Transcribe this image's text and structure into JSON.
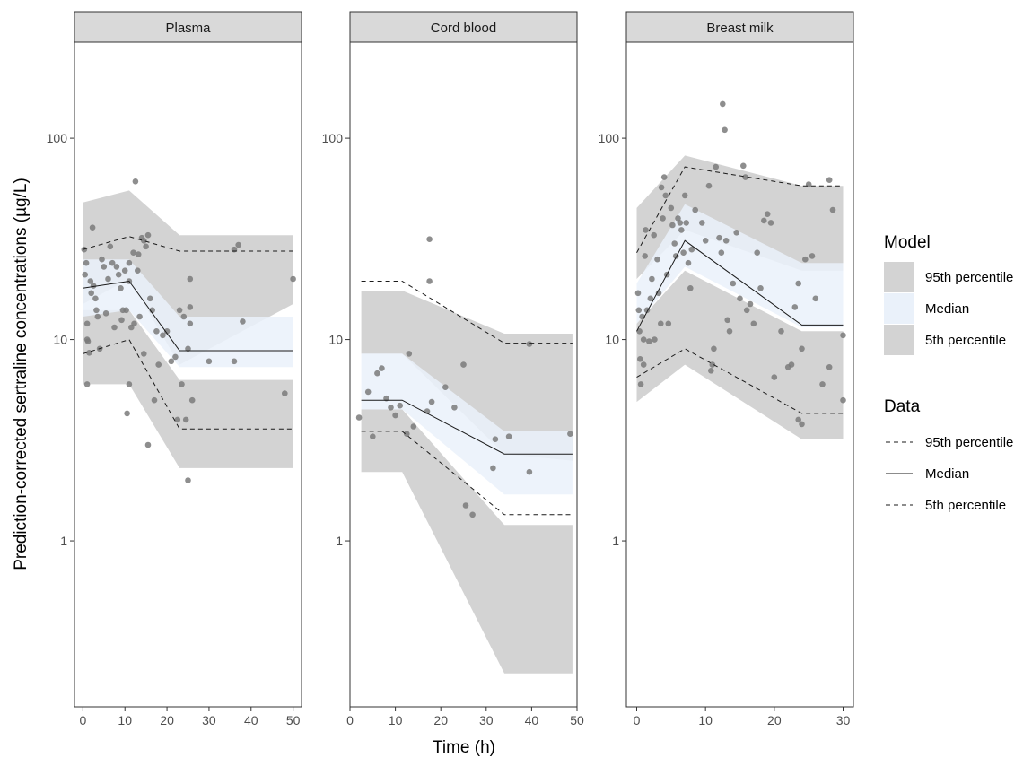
{
  "chart_data": {
    "type": "scatter",
    "ylabel": "Prediction-corrected sertraline concentrations (µg/L)",
    "xlabel": "Time (h)",
    "y_scale": "log10",
    "ylim": [
      0.15,
      300
    ],
    "y_ticks": [
      1,
      10,
      100
    ],
    "y_tick_labels": [
      "1",
      "10",
      "100"
    ],
    "colors": {
      "band_95": "#d3d3d3",
      "band_median": "#eaf1fa",
      "points": "#7a7a7a",
      "line": "#1a1a1a",
      "strip": "#d9d9d9"
    },
    "panels": [
      {
        "title": "Plasma",
        "xlim": [
          -2,
          52
        ],
        "x_ticks": [
          0,
          10,
          20,
          30,
          40,
          50
        ],
        "x_tick_labels": [
          "0",
          "10",
          "20",
          "30",
          "40",
          "50"
        ],
        "bands": {
          "p95": {
            "x": [
              0,
              11,
              23,
              50
            ],
            "lo": [
              15,
              20,
              7.5,
              15
            ],
            "hi": [
              48,
              55,
              33,
              33
            ]
          },
          "median": {
            "x": [
              0,
              11,
              23,
              50
            ],
            "lo": [
              13,
              14,
              7.3,
              7.3
            ],
            "hi": [
              25,
              25,
              13,
              13
            ]
          },
          "p5": {
            "x": [
              0,
              11,
              23,
              50
            ],
            "lo": [
              6,
              6,
              2.3,
              2.3
            ],
            "hi": [
              14,
              14,
              6.3,
              6.3
            ]
          }
        },
        "lines": {
          "p95": {
            "x": [
              0,
              11,
              23,
              50
            ],
            "y": [
              28,
              32.5,
              27.5,
              27.5
            ]
          },
          "median": {
            "x": [
              0,
              11,
              23,
              50
            ],
            "y": [
              18,
              19.5,
              8.8,
              8.8
            ]
          },
          "p5": {
            "x": [
              0,
              11,
              23,
              50
            ],
            "y": [
              8.5,
              10,
              3.6,
              3.6
            ]
          }
        },
        "points": [
          [
            0.3,
            28
          ],
          [
            0.5,
            21
          ],
          [
            0.8,
            24
          ],
          [
            1,
            12
          ],
          [
            1,
            10
          ],
          [
            1.2,
            9.8
          ],
          [
            1.5,
            8.6
          ],
          [
            1,
            6
          ],
          [
            1.8,
            19.5
          ],
          [
            2,
            17
          ],
          [
            2.3,
            36
          ],
          [
            2.5,
            18.5
          ],
          [
            3,
            16
          ],
          [
            3.2,
            14
          ],
          [
            3.5,
            13
          ],
          [
            4,
            9
          ],
          [
            4.5,
            25
          ],
          [
            5,
            23
          ],
          [
            5.5,
            13.5
          ],
          [
            6,
            20
          ],
          [
            6.5,
            29
          ],
          [
            7,
            24
          ],
          [
            7.5,
            11.5
          ],
          [
            8,
            23
          ],
          [
            8.5,
            21
          ],
          [
            9,
            18
          ],
          [
            9.2,
            12.5
          ],
          [
            9.5,
            14
          ],
          [
            10,
            22
          ],
          [
            10.3,
            14
          ],
          [
            10.5,
            4.3
          ],
          [
            11,
            24
          ],
          [
            11,
            19.5
          ],
          [
            11.5,
            11.5
          ],
          [
            11,
            6
          ],
          [
            12,
            27
          ],
          [
            12.2,
            12
          ],
          [
            12.5,
            61
          ],
          [
            13,
            22
          ],
          [
            13.2,
            26.5
          ],
          [
            13.5,
            13
          ],
          [
            14,
            32
          ],
          [
            14.5,
            31
          ],
          [
            14.5,
            8.5
          ],
          [
            15,
            29
          ],
          [
            15.5,
            33
          ],
          [
            15.5,
            3
          ],
          [
            16,
            16
          ],
          [
            16.5,
            14
          ],
          [
            17,
            5
          ],
          [
            17.5,
            11
          ],
          [
            18,
            7.5
          ],
          [
            19,
            10.5
          ],
          [
            20,
            11
          ],
          [
            21,
            7.8
          ],
          [
            22,
            8.2
          ],
          [
            22.5,
            4
          ],
          [
            23,
            14
          ],
          [
            23.5,
            6
          ],
          [
            24,
            13
          ],
          [
            24.5,
            4
          ],
          [
            25,
            9
          ],
          [
            25,
            2
          ],
          [
            25.5,
            12
          ],
          [
            25.5,
            20
          ],
          [
            25.5,
            14.5
          ],
          [
            26,
            5
          ],
          [
            30,
            7.8
          ],
          [
            36,
            28
          ],
          [
            37,
            29.5
          ],
          [
            36,
            7.8
          ],
          [
            38,
            12.3
          ],
          [
            48,
            5.4
          ],
          [
            50,
            20
          ]
        ]
      },
      {
        "title": "Cord blood",
        "xlim": [
          0,
          50
        ],
        "x_ticks": [
          0,
          10,
          20,
          30,
          40,
          50
        ],
        "x_tick_labels": [
          "0",
          "10",
          "20",
          "30",
          "40",
          "50"
        ],
        "bands": {
          "p95": {
            "x": [
              2.5,
              11.5,
              34,
              49
            ],
            "lo": [
              8.5,
              8.5,
              2.7,
              2.5
            ],
            "hi": [
              17.5,
              17.5,
              10.7,
              10.7
            ]
          },
          "median": {
            "x": [
              2.5,
              11.5,
              34,
              49
            ],
            "lo": [
              4.5,
              4.5,
              1.7,
              1.7
            ],
            "hi": [
              8.5,
              8.5,
              3.5,
              3.5
            ]
          },
          "p5": {
            "x": [
              2.5,
              11.5,
              34,
              49
            ],
            "lo": [
              2.2,
              2.2,
              0.22,
              0.22
            ],
            "hi": [
              4.5,
              4.5,
              1.2,
              1.2
            ]
          }
        },
        "lines": {
          "p95": {
            "x": [
              2.5,
              11.5,
              34,
              49
            ],
            "y": [
              19.5,
              19.5,
              9.6,
              9.6
            ]
          },
          "median": {
            "x": [
              2.5,
              11.5,
              34,
              49
            ],
            "y": [
              5,
              5,
              2.7,
              2.7
            ]
          },
          "p5": {
            "x": [
              2.5,
              11.5,
              34,
              49
            ],
            "y": [
              3.5,
              3.5,
              1.35,
              1.35
            ]
          }
        },
        "points": [
          [
            2,
            4.1
          ],
          [
            4,
            5.5
          ],
          [
            5,
            3.3
          ],
          [
            6,
            6.8
          ],
          [
            7,
            7.2
          ],
          [
            8,
            5.1
          ],
          [
            9,
            4.6
          ],
          [
            10,
            4.2
          ],
          [
            11,
            4.7
          ],
          [
            12.5,
            3.4
          ],
          [
            13,
            8.5
          ],
          [
            14,
            3.7
          ],
          [
            17,
            4.4
          ],
          [
            17.5,
            31.5
          ],
          [
            17.5,
            19.5
          ],
          [
            18,
            4.9
          ],
          [
            21,
            5.8
          ],
          [
            23,
            4.6
          ],
          [
            25,
            7.5
          ],
          [
            25.5,
            1.5
          ],
          [
            27,
            1.35
          ],
          [
            31.5,
            2.3
          ],
          [
            32,
            3.2
          ],
          [
            35,
            3.3
          ],
          [
            39.5,
            9.5
          ],
          [
            39.5,
            2.2
          ],
          [
            48.5,
            3.4
          ]
        ]
      },
      {
        "title": "Breast milk",
        "xlim": [
          -1.5,
          31.5
        ],
        "x_ticks": [
          0,
          10,
          20,
          30
        ],
        "x_tick_labels": [
          "0",
          "10",
          "20",
          "30"
        ],
        "bands": {
          "p95": {
            "x": [
              0,
              7,
              24,
              30
            ],
            "lo": [
              20,
              35,
              22,
              22
            ],
            "hi": [
              45,
              82,
              58,
              58
            ]
          },
          "median": {
            "x": [
              0,
              7,
              24,
              30
            ],
            "lo": [
              12,
              23,
              11.5,
              11.5
            ],
            "hi": [
              19,
              47,
              24,
              24
            ]
          },
          "p5": {
            "x": [
              0,
              7,
              24,
              30
            ],
            "lo": [
              4.9,
              7.5,
              3.2,
              3.2
            ],
            "hi": [
              12,
              22,
              11,
              11
            ]
          }
        },
        "lines": {
          "p95": {
            "x": [
              0,
              7,
              24,
              30
            ],
            "y": [
              27,
              72,
              58,
              58
            ]
          },
          "median": {
            "x": [
              0,
              7,
              24,
              30
            ],
            "y": [
              11,
              31,
              11.8,
              11.8
            ]
          },
          "p5": {
            "x": [
              0,
              7,
              24,
              30
            ],
            "y": [
              6.5,
              9,
              4.3,
              4.3
            ]
          }
        },
        "points": [
          [
            0.2,
            17
          ],
          [
            0.3,
            14
          ],
          [
            0.4,
            11
          ],
          [
            0.5,
            8
          ],
          [
            0.6,
            6
          ],
          [
            0.8,
            13
          ],
          [
            1,
            10
          ],
          [
            1,
            7.5
          ],
          [
            1.2,
            26
          ],
          [
            1.3,
            35
          ],
          [
            1.5,
            14
          ],
          [
            1.8,
            9.8
          ],
          [
            2,
            16
          ],
          [
            2.2,
            20
          ],
          [
            2.5,
            33
          ],
          [
            2.6,
            10
          ],
          [
            3,
            25
          ],
          [
            3.2,
            17
          ],
          [
            3.5,
            12
          ],
          [
            3.6,
            57
          ],
          [
            3.8,
            40
          ],
          [
            4,
            64
          ],
          [
            4.2,
            52
          ],
          [
            4.4,
            21
          ],
          [
            4.6,
            12
          ],
          [
            5,
            45
          ],
          [
            5.2,
            37
          ],
          [
            5.5,
            30
          ],
          [
            5.7,
            26
          ],
          [
            6,
            40
          ],
          [
            6.3,
            38
          ],
          [
            6.5,
            35
          ],
          [
            6.8,
            27
          ],
          [
            7,
            52
          ],
          [
            7.2,
            38
          ],
          [
            7.5,
            24
          ],
          [
            7.8,
            18
          ],
          [
            8,
            28
          ],
          [
            8.5,
            44
          ],
          [
            9.5,
            38
          ],
          [
            10,
            31
          ],
          [
            10.5,
            58
          ],
          [
            10.8,
            7
          ],
          [
            11,
            7.5
          ],
          [
            11.2,
            9
          ],
          [
            11.5,
            72
          ],
          [
            12,
            32
          ],
          [
            12.3,
            27
          ],
          [
            12.5,
            148
          ],
          [
            12.8,
            110
          ],
          [
            13,
            31
          ],
          [
            13.2,
            12.5
          ],
          [
            13.5,
            11
          ],
          [
            14,
            19
          ],
          [
            14.5,
            34
          ],
          [
            15,
            16
          ],
          [
            15.5,
            73
          ],
          [
            15.8,
            64
          ],
          [
            16,
            14
          ],
          [
            16.5,
            15
          ],
          [
            17,
            12
          ],
          [
            17.5,
            27
          ],
          [
            18,
            18
          ],
          [
            18.5,
            39
          ],
          [
            19,
            42
          ],
          [
            19.5,
            38
          ],
          [
            20,
            6.5
          ],
          [
            21,
            11
          ],
          [
            22,
            7.3
          ],
          [
            22.5,
            7.5
          ],
          [
            23,
            14.5
          ],
          [
            23.5,
            4
          ],
          [
            23.5,
            19
          ],
          [
            24,
            9
          ],
          [
            24,
            3.8
          ],
          [
            24.5,
            25
          ],
          [
            25,
            59
          ],
          [
            25.5,
            26
          ],
          [
            26,
            16
          ],
          [
            27,
            6
          ],
          [
            28,
            62
          ],
          [
            28,
            7.3
          ],
          [
            28.5,
            44
          ],
          [
            30,
            10.5
          ],
          [
            30,
            5
          ]
        ]
      }
    ],
    "legend": {
      "placement": "right",
      "model": {
        "title": "Model",
        "items": [
          {
            "label": "95th percentile",
            "fill": "#d3d3d3"
          },
          {
            "label": "Median",
            "fill": "#eaf1fa"
          },
          {
            "label": "5th percentile",
            "fill": "#d3d3d3"
          }
        ]
      },
      "data": {
        "title": "Data",
        "items": [
          {
            "label": "95th percentile",
            "dash": "5,4"
          },
          {
            "label": "Median",
            "dash": ""
          },
          {
            "label": "5th percentile",
            "dash": "5,4"
          }
        ]
      }
    }
  }
}
